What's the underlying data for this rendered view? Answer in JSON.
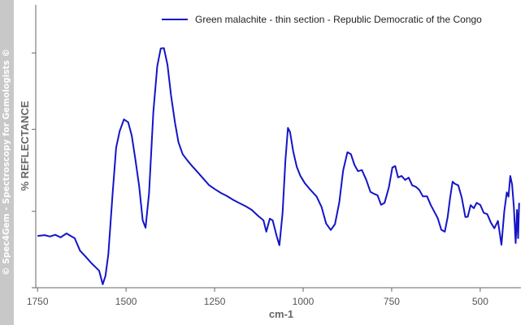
{
  "watermark": "© Spec4Gem - Spectroscopy for Gemologists ©",
  "chart_data": {
    "type": "line",
    "title": "",
    "xlabel": "cm-1",
    "ylabel": "% REFLECTANCE",
    "x_reversed": true,
    "xlim": [
      1755,
      385
    ],
    "x_ticks": [
      1750,
      1500,
      1250,
      1000,
      750,
      500
    ],
    "y_tick_labels": false,
    "grid": false,
    "legend_position": "top-right",
    "colors": {
      "series": "#1414c8",
      "axis": "#666666"
    },
    "series": [
      {
        "name": "Green malachite - thin section - Republic Democratic of the Congo",
        "points": [
          [
            1750,
            0.183
          ],
          [
            1730,
            0.186
          ],
          [
            1715,
            0.181
          ],
          [
            1700,
            0.187
          ],
          [
            1685,
            0.178
          ],
          [
            1668,
            0.192
          ],
          [
            1655,
            0.182
          ],
          [
            1645,
            0.175
          ],
          [
            1630,
            0.131
          ],
          [
            1612,
            0.107
          ],
          [
            1598,
            0.087
          ],
          [
            1585,
            0.071
          ],
          [
            1576,
            0.06
          ],
          [
            1566,
            0.012
          ],
          [
            1558,
            0.042
          ],
          [
            1550,
            0.118
          ],
          [
            1538,
            0.334
          ],
          [
            1528,
            0.495
          ],
          [
            1518,
            0.554
          ],
          [
            1506,
            0.595
          ],
          [
            1494,
            0.585
          ],
          [
            1484,
            0.538
          ],
          [
            1474,
            0.455
          ],
          [
            1463,
            0.36
          ],
          [
            1453,
            0.238
          ],
          [
            1445,
            0.212
          ],
          [
            1435,
            0.334
          ],
          [
            1423,
            0.622
          ],
          [
            1412,
            0.783
          ],
          [
            1402,
            0.846
          ],
          [
            1393,
            0.847
          ],
          [
            1383,
            0.788
          ],
          [
            1373,
            0.679
          ],
          [
            1362,
            0.584
          ],
          [
            1352,
            0.514
          ],
          [
            1340,
            0.472
          ],
          [
            1326,
            0.449
          ],
          [
            1312,
            0.428
          ],
          [
            1298,
            0.409
          ],
          [
            1282,
            0.386
          ],
          [
            1266,
            0.363
          ],
          [
            1250,
            0.349
          ],
          [
            1232,
            0.335
          ],
          [
            1215,
            0.324
          ],
          [
            1198,
            0.311
          ],
          [
            1180,
            0.299
          ],
          [
            1162,
            0.288
          ],
          [
            1145,
            0.275
          ],
          [
            1128,
            0.255
          ],
          [
            1112,
            0.238
          ],
          [
            1104,
            0.198
          ],
          [
            1094,
            0.244
          ],
          [
            1086,
            0.238
          ],
          [
            1075,
            0.184
          ],
          [
            1067,
            0.15
          ],
          [
            1058,
            0.264
          ],
          [
            1050,
            0.45
          ],
          [
            1043,
            0.565
          ],
          [
            1037,
            0.55
          ],
          [
            1028,
            0.482
          ],
          [
            1018,
            0.427
          ],
          [
            1008,
            0.396
          ],
          [
            995,
            0.369
          ],
          [
            980,
            0.347
          ],
          [
            962,
            0.322
          ],
          [
            948,
            0.285
          ],
          [
            935,
            0.227
          ],
          [
            922,
            0.204
          ],
          [
            910,
            0.225
          ],
          [
            898,
            0.302
          ],
          [
            887,
            0.414
          ],
          [
            875,
            0.479
          ],
          [
            865,
            0.472
          ],
          [
            855,
            0.434
          ],
          [
            845,
            0.412
          ],
          [
            834,
            0.416
          ],
          [
            822,
            0.382
          ],
          [
            810,
            0.339
          ],
          [
            800,
            0.332
          ],
          [
            790,
            0.327
          ],
          [
            780,
            0.293
          ],
          [
            770,
            0.3
          ],
          [
            758,
            0.355
          ],
          [
            748,
            0.425
          ],
          [
            740,
            0.43
          ],
          [
            732,
            0.39
          ],
          [
            722,
            0.395
          ],
          [
            712,
            0.381
          ],
          [
            702,
            0.389
          ],
          [
            692,
            0.362
          ],
          [
            682,
            0.357
          ],
          [
            672,
            0.346
          ],
          [
            662,
            0.323
          ],
          [
            650,
            0.323
          ],
          [
            640,
            0.293
          ],
          [
            630,
            0.27
          ],
          [
            620,
            0.246
          ],
          [
            610,
            0.205
          ],
          [
            600,
            0.198
          ],
          [
            592,
            0.249
          ],
          [
            585,
            0.317
          ],
          [
            578,
            0.375
          ],
          [
            572,
            0.368
          ],
          [
            562,
            0.362
          ],
          [
            552,
            0.318
          ],
          [
            542,
            0.25
          ],
          [
            535,
            0.251
          ],
          [
            527,
            0.292
          ],
          [
            518,
            0.281
          ],
          [
            510,
            0.3
          ],
          [
            500,
            0.293
          ],
          [
            490,
            0.265
          ],
          [
            480,
            0.26
          ],
          [
            470,
            0.23
          ],
          [
            460,
            0.21
          ],
          [
            450,
            0.236
          ],
          [
            440,
            0.152
          ],
          [
            432,
            0.27
          ],
          [
            425,
            0.337
          ],
          [
            420,
            0.322
          ],
          [
            415,
            0.395
          ],
          [
            410,
            0.365
          ],
          [
            405,
            0.285
          ],
          [
            400,
            0.158
          ],
          [
            396,
            0.275
          ],
          [
            393,
            0.175
          ],
          [
            390,
            0.3
          ]
        ]
      }
    ]
  }
}
